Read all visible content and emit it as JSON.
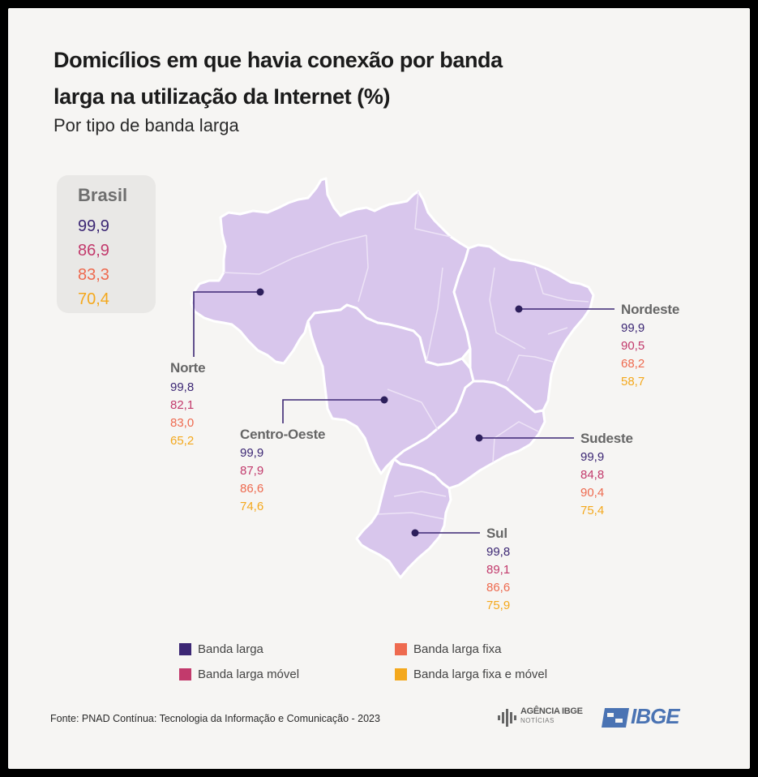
{
  "title_line1": "Domicílios em que havia conexão por banda",
  "title_line2": "larga na utilização da Internet (%)",
  "subtitle": "Por tipo de banda larga",
  "colors": {
    "map_fill": "#d8c6ec",
    "banda_larga": "#3c2774",
    "banda_larga_movel": "#c23a6c",
    "banda_larga_fixa": "#ee6a4f",
    "banda_larga_fixa_e_movel": "#f4a81c"
  },
  "chart_data": {
    "type": "map",
    "series": [
      {
        "name": "Banda larga"
      },
      {
        "name": "Banda larga móvel"
      },
      {
        "name": "Banda larga fixa"
      },
      {
        "name": "Banda larga fixa e móvel"
      }
    ],
    "regions": [
      {
        "name": "Brasil",
        "values": [
          "99,9",
          "86,9",
          "83,3",
          "70,4"
        ]
      },
      {
        "name": "Norte",
        "values": [
          "99,8",
          "82,1",
          "83,0",
          "65,2"
        ]
      },
      {
        "name": "Nordeste",
        "values": [
          "99,9",
          "90,5",
          "68,2",
          "58,7"
        ]
      },
      {
        "name": "Centro-Oeste",
        "values": [
          "99,9",
          "87,9",
          "86,6",
          "74,6"
        ]
      },
      {
        "name": "Sudeste",
        "values": [
          "99,9",
          "84,8",
          "90,4",
          "75,4"
        ]
      },
      {
        "name": "Sul",
        "values": [
          "99,8",
          "89,1",
          "86,6",
          "75,9"
        ]
      }
    ]
  },
  "legend": {
    "banda_larga": "Banda larga",
    "banda_larga_movel": "Banda larga móvel",
    "banda_larga_fixa": "Banda larga fixa",
    "banda_larga_fixa_e_movel": "Banda larga fixa e móvel"
  },
  "source": "Fonte: PNAD Contínua: Tecnologia da Informação e Comunicação - 2023",
  "logo_agencia_line1": "AGÊNCIA IBGE",
  "logo_agencia_line2": "NOTÍCIAS",
  "logo_ibge": "IBGE"
}
